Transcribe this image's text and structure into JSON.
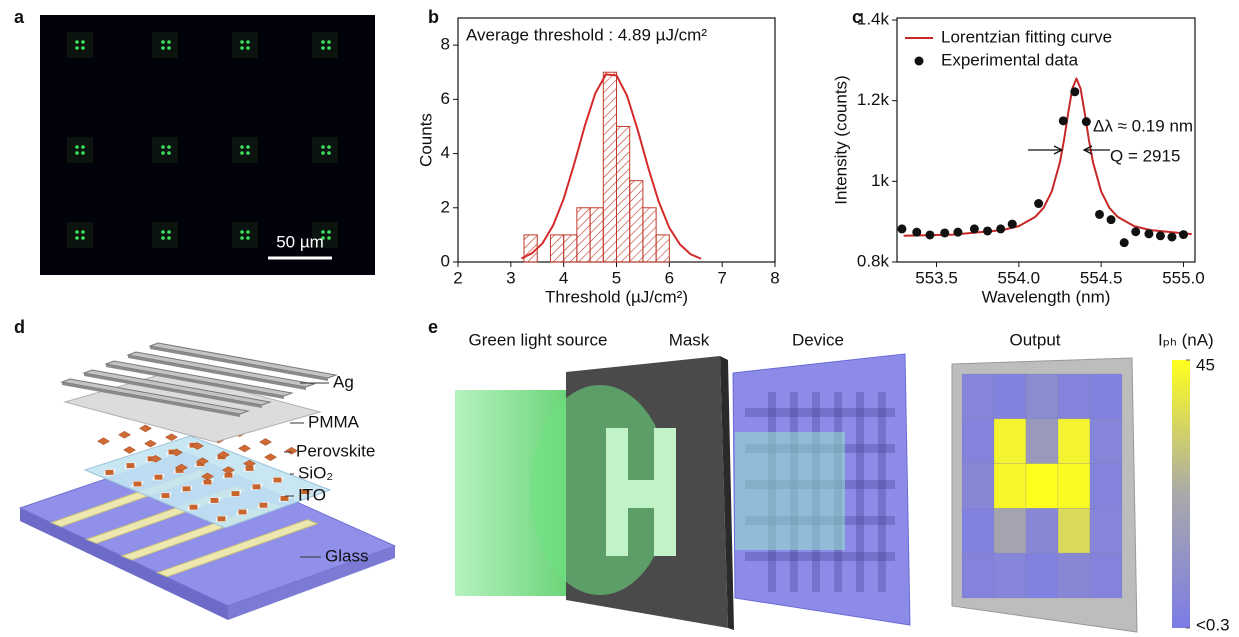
{
  "panel_labels": [
    "a",
    "b",
    "c",
    "d",
    "e"
  ],
  "image_a": {
    "scale_bar": "50 µm"
  },
  "chart_data": [
    {
      "type": "histogram",
      "annotation": "Average threshold : 4.89 µJ/cm²",
      "xlabel": "Threshold (µJ/cm²)",
      "ylabel": "Counts",
      "bins": [
        3.25,
        3.5,
        3.75,
        4.0,
        4.25,
        4.5,
        4.75,
        5.0,
        5.25,
        5.5,
        5.75,
        6.0
      ],
      "values": [
        1,
        0,
        1,
        1,
        2,
        2,
        7,
        5,
        3,
        2,
        1
      ],
      "color": "#c0392b",
      "curve": {
        "color": "#d42a2a",
        "x": [
          3.2,
          3.4,
          3.6,
          3.8,
          4.0,
          4.2,
          4.4,
          4.6,
          4.8,
          5.0,
          5.2,
          5.4,
          5.6,
          5.8,
          6.0,
          6.2,
          6.4,
          6.6
        ],
        "values": [
          0.13,
          0.32,
          0.69,
          1.35,
          2.33,
          3.62,
          5.02,
          6.23,
          6.92,
          6.88,
          6.13,
          4.88,
          3.48,
          2.22,
          1.26,
          0.65,
          0.29,
          0.12
        ]
      },
      "xlim": [
        2,
        8
      ],
      "xticks": [
        2,
        3,
        4,
        5,
        6,
        7,
        8
      ],
      "ylim": [
        0,
        9
      ],
      "yticks": [
        0,
        2,
        4,
        6,
        8
      ]
    },
    {
      "type": "line",
      "xlabel": "Wavelength (nm)",
      "ylabel": "Intensity (counts)",
      "annotations": [
        "Δλ ≈ 0.19 nm",
        "Q = 2915"
      ],
      "series": [
        {
          "name": "Lorentzian fitting curve",
          "color": "#c62828",
          "style": "line",
          "x": [
            553.3,
            553.6,
            553.9,
            554.0,
            554.1,
            554.15,
            554.2,
            554.25,
            554.275,
            554.3,
            554.325,
            554.35,
            554.375,
            554.4,
            554.425,
            554.45,
            554.5,
            554.55,
            554.6,
            554.7,
            554.8,
            555.05
          ],
          "values": [
            865,
            868,
            879,
            889,
            912,
            934,
            975,
            1048,
            1104,
            1170,
            1230,
            1255,
            1230,
            1170,
            1104,
            1048,
            975,
            934,
            912,
            889,
            879,
            869
          ]
        },
        {
          "name": "Experimental data",
          "color": "#111111",
          "style": "marker",
          "x": [
            553.29,
            553.38,
            553.46,
            553.55,
            553.63,
            553.73,
            553.81,
            553.89,
            553.96,
            554.12,
            554.27,
            554.34,
            554.41,
            554.49,
            554.56,
            554.64,
            554.71,
            554.79,
            554.86,
            554.93,
            555.0
          ],
          "values": [
            882,
            874,
            867,
            872,
            874,
            882,
            877,
            882,
            894,
            945,
            1150,
            1222,
            1148,
            918,
            905,
            848,
            875,
            870,
            865,
            862,
            868
          ]
        }
      ],
      "xlim": [
        553.26,
        555.07
      ],
      "xticks": [
        553.5,
        {
          "value": 554,
          "label": "554.0"
        },
        554.5,
        {
          "value": 555,
          "label": "555.0"
        }
      ],
      "ylim": [
        800,
        1405
      ],
      "yticks": [
        {
          "value": 800,
          "label": "0.8k"
        },
        {
          "value": 1000,
          "label": "1k"
        },
        {
          "value": 1200,
          "label": "1.2k"
        },
        {
          "value": 1400,
          "label": "1.4k"
        }
      ]
    },
    {
      "type": "heatmap",
      "colorbar_label": "Iₚₕ (nA)",
      "values": [
        [
          5,
          3,
          8,
          4,
          3
        ],
        [
          4,
          42,
          15,
          42,
          5
        ],
        [
          6,
          43,
          45,
          44,
          4
        ],
        [
          3,
          20,
          6,
          35,
          5
        ],
        [
          4,
          5,
          3,
          6,
          4
        ]
      ],
      "zlim": [
        0.3,
        45
      ],
      "colorbar_ticks": [
        {
          "value": 0.3,
          "label": "<0.3"
        },
        45
      ],
      "colormap": [
        "#7b7be6",
        "#a9a9a9",
        "#ffff1e"
      ]
    }
  ],
  "diagram_d": {
    "layers": [
      "Ag",
      "PMMA",
      "Perovskite",
      "SiO₂",
      "ITO",
      "Glass"
    ]
  },
  "diagram_e": {
    "stages": [
      "Green light source",
      "Mask",
      "Device",
      "Output"
    ]
  }
}
